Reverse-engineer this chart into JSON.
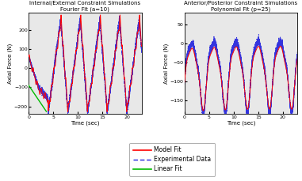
{
  "title_left": "Internal/External Constraint Simulations\nFourier Fit (a=10)",
  "title_right": "Anterior/Posterior Constraint Simulations\nPolynomial Fit (p=25)",
  "xlabel": "Time (sec)",
  "ylabel": "Axial Force (N)",
  "left_xlim": [
    0,
    23
  ],
  "left_ylim": [
    -240,
    290
  ],
  "left_yticks": [
    -200,
    -100,
    0,
    100,
    200
  ],
  "left_xticks": [
    0,
    5,
    10,
    15,
    20
  ],
  "right_xlim": [
    0,
    23
  ],
  "right_ylim": [
    -185,
    80
  ],
  "right_yticks": [
    -150,
    -100,
    -50,
    0,
    50
  ],
  "right_xticks": [
    0,
    5,
    10,
    15,
    20
  ],
  "color_model": "#FF0000",
  "color_exp": "#2020DD",
  "color_linear": "#00BB00",
  "bg_color": "#E8E8E8",
  "legend_labels": [
    "Model Fit",
    "Experimental Data",
    "Linear Fit"
  ],
  "title_fontsize": 5.0,
  "label_fontsize": 5.0,
  "tick_fontsize": 4.5
}
